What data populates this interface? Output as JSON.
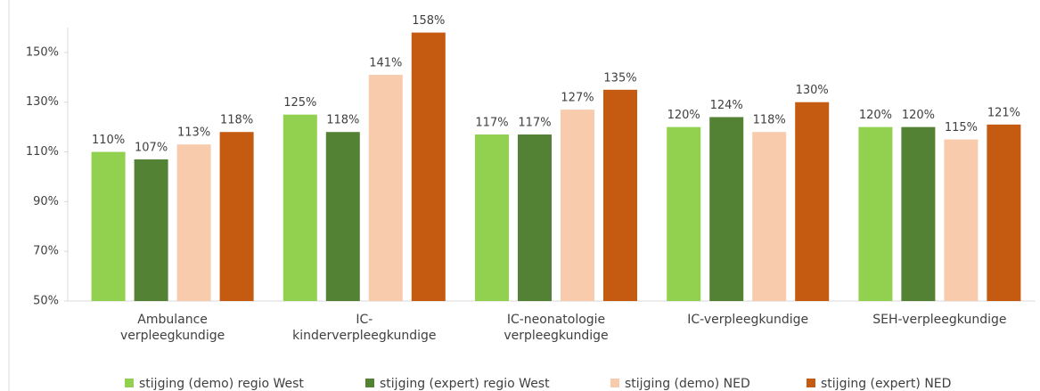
{
  "chart_data": {
    "type": "bar",
    "categories": [
      "Ambulance verpleegkundige",
      "IC-kinderverpleegkundige",
      "IC-neonatologie verpleegkundige",
      "IC-verpleegkundige",
      "SEH-verpleegkundige"
    ],
    "series": [
      {
        "name": "stijging (demo) regio West",
        "color": "#92d050",
        "values": [
          110,
          125,
          117,
          120,
          120
        ],
        "value_labels": [
          "110%",
          "125%",
          "117%",
          "120%",
          "120%"
        ]
      },
      {
        "name": "stijging (expert) regio West",
        "color": "#548235",
        "values": [
          107,
          118,
          117,
          124,
          120
        ],
        "value_labels": [
          "107%",
          "118%",
          "117%",
          "124%",
          "120%"
        ]
      },
      {
        "name": "stijging (demo) NED",
        "color": "#f8cbad",
        "values": [
          113,
          141,
          127,
          118,
          115
        ],
        "value_labels": [
          "113%",
          "141%",
          "127%",
          "118%",
          "115%"
        ]
      },
      {
        "name": "stijging (expert) NED",
        "color": "#c55a11",
        "values": [
          118,
          158,
          135,
          130,
          121
        ],
        "value_labels": [
          "118%",
          "158%",
          "135%",
          "130%",
          "121%"
        ]
      }
    ],
    "ylim": [
      50,
      160
    ],
    "yticks": [
      {
        "value": 50,
        "label": "50%"
      },
      {
        "value": 70,
        "label": "70%"
      },
      {
        "value": 90,
        "label": "90%"
      },
      {
        "value": 110,
        "label": "110%"
      },
      {
        "value": 130,
        "label": "130%"
      },
      {
        "value": 150,
        "label": "150%"
      }
    ],
    "legend": "bottom"
  }
}
